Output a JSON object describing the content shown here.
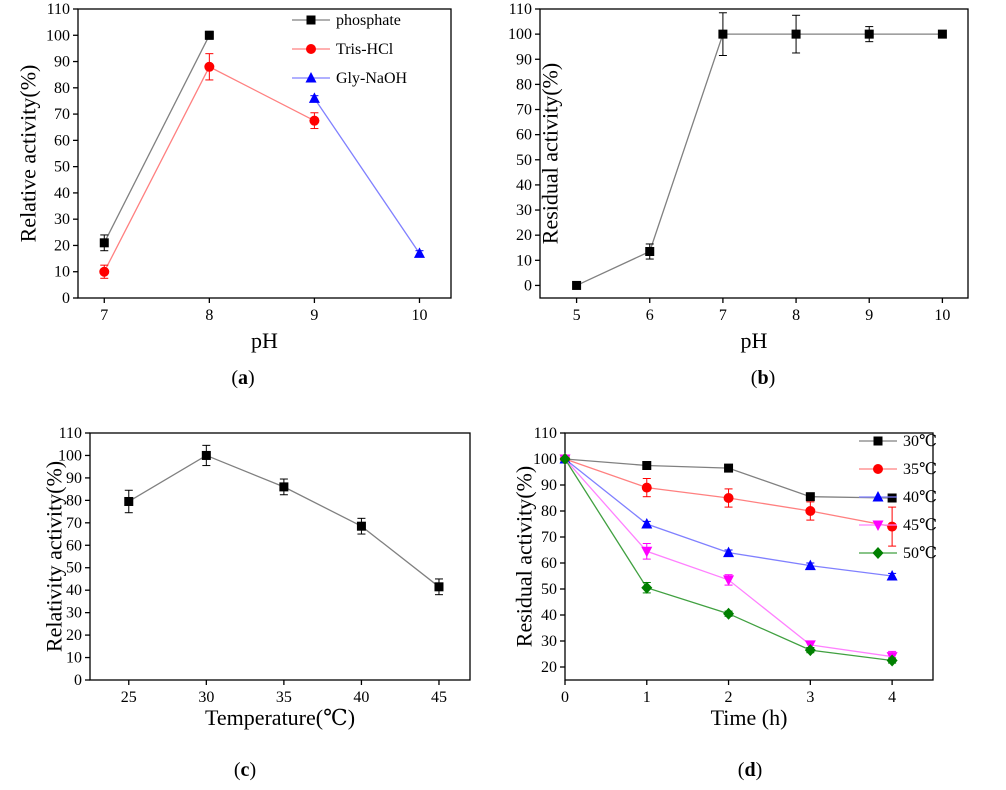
{
  "chart_data": [
    {
      "type": "line",
      "panel_label": [
        "(",
        "a",
        ")"
      ],
      "xlabel": "pH",
      "ylabel": "Relative activity(%)",
      "xlim": [
        6.75,
        10.3
      ],
      "ylim": [
        0,
        110
      ],
      "xticks": [
        7,
        8,
        9,
        10
      ],
      "yticks": [
        0,
        10,
        20,
        30,
        40,
        50,
        60,
        70,
        80,
        90,
        100,
        110
      ],
      "legend": "top-right",
      "grid": false,
      "series": [
        {
          "name": "phosphate",
          "marker": "square",
          "color": "#000000",
          "line_color": "#808080",
          "x": [
            7,
            8
          ],
          "y": [
            21,
            100
          ],
          "err": [
            3,
            1.5
          ]
        },
        {
          "name": "Tris-HCl",
          "marker": "circle",
          "color": "#ff0000",
          "line_color": "#ff8080",
          "x": [
            7,
            8,
            9
          ],
          "y": [
            10,
            88,
            67.5
          ],
          "err": [
            2.5,
            5,
            3
          ]
        },
        {
          "name": "Gly-NaOH",
          "marker": "triangle",
          "color": "#0000ff",
          "line_color": "#8080ff",
          "x": [
            9,
            10
          ],
          "y": [
            76,
            17
          ],
          "err": [
            1,
            1
          ]
        }
      ]
    },
    {
      "type": "line",
      "panel_label": [
        "(",
        "b",
        ")"
      ],
      "xlabel": "pH",
      "ylabel": "Residual activity(%)",
      "xlim": [
        4.5,
        10.35
      ],
      "ylim": [
        -5,
        110
      ],
      "xticks": [
        5,
        6,
        7,
        8,
        9,
        10
      ],
      "yticks": [
        0,
        10,
        20,
        30,
        40,
        50,
        60,
        70,
        80,
        90,
        100,
        110
      ],
      "grid": false,
      "series": [
        {
          "marker": "square",
          "color": "#000000",
          "line_color": "#808080",
          "x": [
            5,
            6,
            7,
            8,
            9,
            10
          ],
          "y": [
            0,
            13.5,
            100,
            100,
            100,
            100
          ],
          "err": [
            0.5,
            3,
            8.5,
            7.5,
            3,
            0.5
          ]
        }
      ]
    },
    {
      "type": "line",
      "panel_label": [
        "(",
        "c",
        ")"
      ],
      "xlabel": "Temperature(℃)",
      "ylabel": "Relativity activity(%)",
      "xlim": [
        22.5,
        47
      ],
      "ylim": [
        0,
        110
      ],
      "xticks": [
        25,
        30,
        35,
        40,
        45
      ],
      "yticks": [
        0,
        10,
        20,
        30,
        40,
        50,
        60,
        70,
        80,
        90,
        100,
        110
      ],
      "grid": false,
      "series": [
        {
          "marker": "square",
          "color": "#000000",
          "line_color": "#808080",
          "x": [
            25,
            30,
            35,
            40,
            45
          ],
          "y": [
            79.5,
            100,
            86,
            68.5,
            41.5
          ],
          "err": [
            5,
            4.5,
            3.5,
            3.5,
            3.5
          ]
        }
      ]
    },
    {
      "type": "line",
      "panel_label": [
        "(",
        "d",
        ")"
      ],
      "xlabel": "Time (h)",
      "ylabel": "Residual activity(%)",
      "xlim": [
        0,
        4.5
      ],
      "ylim": [
        15,
        110
      ],
      "xticks": [
        0,
        1,
        2,
        3,
        4
      ],
      "yticks": [
        20,
        30,
        40,
        50,
        60,
        70,
        80,
        90,
        100,
        110
      ],
      "legend": "top-right",
      "grid": false,
      "series": [
        {
          "name": "30℃",
          "marker": "square",
          "color": "#000000",
          "line_color": "#808080",
          "x": [
            0,
            1,
            2,
            3,
            4
          ],
          "y": [
            100,
            97.5,
            96.5,
            85.5,
            85
          ],
          "err": [
            0.5,
            1,
            1,
            1,
            1
          ]
        },
        {
          "name": "35℃",
          "marker": "circle",
          "color": "#ff0000",
          "line_color": "#ff8080",
          "x": [
            0,
            1,
            2,
            3,
            4
          ],
          "y": [
            100,
            89,
            85,
            80,
            74
          ],
          "err": [
            0.5,
            3.5,
            3.5,
            3.5,
            7.5
          ]
        },
        {
          "name": "40℃",
          "marker": "triangle",
          "color": "#0000ff",
          "line_color": "#8080ff",
          "x": [
            0,
            1,
            2,
            3,
            4
          ],
          "y": [
            100,
            75,
            64,
            59,
            55
          ],
          "err": [
            0.5,
            1,
            1,
            1,
            1
          ]
        },
        {
          "name": "45℃",
          "marker": "triangle-down",
          "color": "#ff00ff",
          "line_color": "#ff80ff",
          "x": [
            0,
            1,
            2,
            3,
            4
          ],
          "y": [
            100,
            64.5,
            53.5,
            28.5,
            24
          ],
          "err": [
            0.5,
            3,
            2,
            1,
            2
          ]
        },
        {
          "name": "50℃",
          "marker": "diamond",
          "color": "#008000",
          "line_color": "#40a040",
          "x": [
            0,
            1,
            2,
            3,
            4
          ],
          "y": [
            100,
            50.5,
            40.5,
            26.5,
            22.5
          ],
          "err": [
            0.5,
            2,
            1,
            1,
            1
          ]
        }
      ]
    }
  ]
}
